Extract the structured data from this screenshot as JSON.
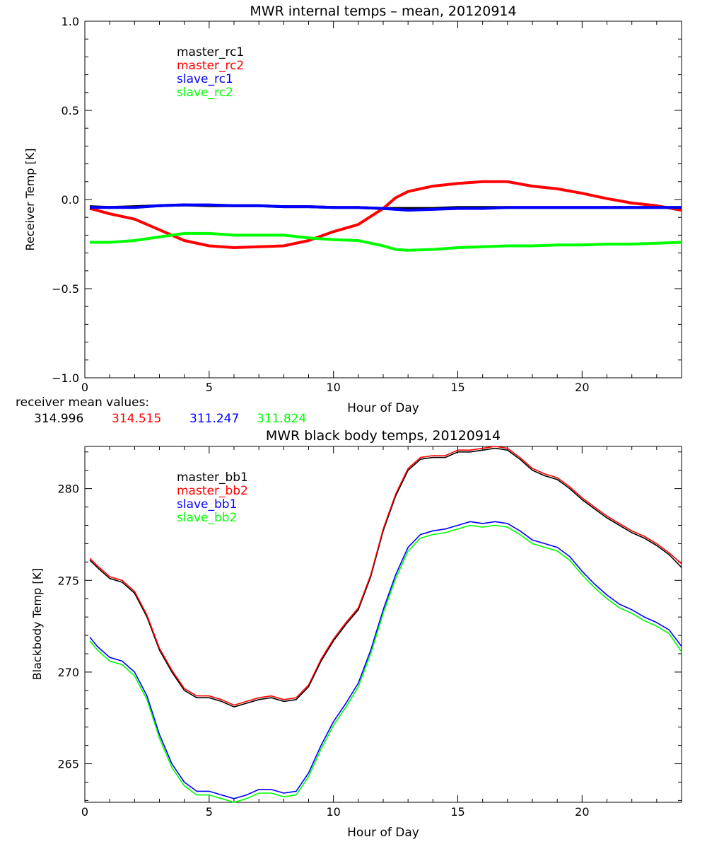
{
  "chart_data": [
    {
      "type": "line",
      "title": "MWR internal temps – mean, 20120914",
      "xlabel": "Hour of Day",
      "ylabel": "Receiver Temp [K]",
      "xlim": [
        0,
        24
      ],
      "ylim": [
        -1.0,
        1.0
      ],
      "xticks": [
        0,
        5,
        10,
        15,
        20
      ],
      "xtick_labels": [
        "0",
        "5",
        "10",
        "15",
        "20"
      ],
      "yticks": [
        -1.0,
        -0.5,
        0.0,
        0.5,
        1.0
      ],
      "ytick_labels": [
        "−1.0",
        "−0.5",
        "0.0",
        "0.5",
        "1.0"
      ],
      "legend_position": "top-left",
      "x": [
        0.2,
        1,
        2,
        3,
        4,
        5,
        6,
        7,
        8,
        9,
        10,
        11,
        12,
        12.5,
        13,
        14,
        15,
        16,
        17,
        18,
        19,
        20,
        21,
        22,
        23,
        24
      ],
      "series": [
        {
          "name": "master_rc1",
          "color": "#000000",
          "values": [
            -0.04,
            -0.045,
            -0.04,
            -0.035,
            -0.03,
            -0.035,
            -0.035,
            -0.035,
            -0.04,
            -0.04,
            -0.045,
            -0.045,
            -0.05,
            -0.05,
            -0.05,
            -0.05,
            -0.045,
            -0.045,
            -0.045,
            -0.045,
            -0.045,
            -0.045,
            -0.045,
            -0.045,
            -0.045,
            -0.045
          ]
        },
        {
          "name": "master_rc2",
          "color": "#ff0000",
          "values": [
            -0.05,
            -0.08,
            -0.11,
            -0.17,
            -0.23,
            -0.26,
            -0.27,
            -0.265,
            -0.26,
            -0.23,
            -0.18,
            -0.14,
            -0.05,
            0.01,
            0.045,
            0.075,
            0.09,
            0.1,
            0.1,
            0.075,
            0.06,
            0.035,
            0.005,
            -0.02,
            -0.035,
            -0.06
          ]
        },
        {
          "name": "slave_rc1",
          "color": "#0000ff",
          "values": [
            -0.045,
            -0.045,
            -0.045,
            -0.035,
            -0.03,
            -0.03,
            -0.035,
            -0.035,
            -0.04,
            -0.04,
            -0.045,
            -0.045,
            -0.05,
            -0.055,
            -0.06,
            -0.055,
            -0.05,
            -0.05,
            -0.045,
            -0.045,
            -0.045,
            -0.045,
            -0.045,
            -0.045,
            -0.045,
            -0.045
          ]
        },
        {
          "name": "slave_rc2",
          "color": "#00ff00",
          "values": [
            -0.24,
            -0.24,
            -0.23,
            -0.21,
            -0.19,
            -0.19,
            -0.2,
            -0.2,
            -0.2,
            -0.215,
            -0.225,
            -0.23,
            -0.26,
            -0.28,
            -0.285,
            -0.28,
            -0.27,
            -0.265,
            -0.26,
            -0.26,
            -0.255,
            -0.255,
            -0.25,
            -0.25,
            -0.245,
            -0.24
          ]
        }
      ],
      "mean_values_label": "receiver mean values:",
      "mean_values": [
        {
          "text": "314.996",
          "color": "#000000"
        },
        {
          "text": "314.515",
          "color": "#ff0000"
        },
        {
          "text": "311.247",
          "color": "#0000ff"
        },
        {
          "text": "311.824",
          "color": "#00ff00"
        }
      ]
    },
    {
      "type": "line",
      "title": "MWR black body temps, 20120914",
      "xlabel": "Hour of Day",
      "ylabel": "Blackbody Temp [K]",
      "xlim": [
        0,
        24
      ],
      "ylim": [
        262.9,
        282.3
      ],
      "xticks": [
        0,
        5,
        10,
        15,
        20
      ],
      "xtick_labels": [
        "0",
        "5",
        "10",
        "15",
        "20"
      ],
      "yticks": [
        265,
        270,
        275,
        280
      ],
      "ytick_labels": [
        "265",
        "270",
        "275",
        "280"
      ],
      "legend_position": "top-left",
      "x": [
        0.2,
        0.5,
        1,
        1.5,
        2,
        2.5,
        3,
        3.5,
        4,
        4.5,
        5,
        5.5,
        6,
        6.5,
        7,
        7.5,
        8,
        8.5,
        9,
        9.5,
        10,
        10.5,
        11,
        11.5,
        12,
        12.5,
        13,
        13.5,
        14,
        14.5,
        15,
        15.5,
        16,
        16.5,
        17,
        17.5,
        18,
        18.5,
        19,
        19.5,
        20,
        20.5,
        21,
        21.5,
        22,
        22.5,
        23,
        23.5,
        24
      ],
      "series": [
        {
          "name": "master_bb1",
          "color": "#000000",
          "values": [
            276.1,
            275.7,
            275.1,
            274.9,
            274.3,
            273.0,
            271.2,
            270.0,
            269.0,
            268.6,
            268.6,
            268.4,
            268.1,
            268.3,
            268.5,
            268.6,
            268.4,
            268.5,
            269.2,
            270.6,
            271.7,
            272.6,
            273.4,
            275.2,
            277.7,
            279.6,
            281.0,
            281.6,
            281.7,
            281.7,
            282.0,
            282.0,
            282.1,
            282.2,
            282.1,
            281.6,
            281.0,
            280.7,
            280.5,
            280.0,
            279.4,
            278.9,
            278.4,
            278.0,
            277.6,
            277.3,
            276.9,
            276.4,
            275.7
          ]
        },
        {
          "name": "master_bb2",
          "color": "#ff0000",
          "values": [
            276.2,
            275.8,
            275.2,
            275.0,
            274.4,
            273.1,
            271.3,
            270.1,
            269.1,
            268.7,
            268.7,
            268.5,
            268.2,
            268.4,
            268.6,
            268.7,
            268.5,
            268.6,
            269.3,
            270.7,
            271.8,
            272.7,
            273.5,
            275.3,
            277.8,
            279.7,
            281.1,
            281.7,
            281.8,
            281.8,
            282.1,
            282.1,
            282.2,
            282.3,
            282.2,
            281.7,
            281.1,
            280.8,
            280.6,
            280.1,
            279.5,
            279.0,
            278.5,
            278.1,
            277.7,
            277.4,
            277.0,
            276.5,
            275.9
          ]
        },
        {
          "name": "slave_bb1",
          "color": "#0000ff",
          "values": [
            271.9,
            271.4,
            270.8,
            270.6,
            270.0,
            268.7,
            266.6,
            265.0,
            264.0,
            263.5,
            263.5,
            263.3,
            263.1,
            263.3,
            263.6,
            263.6,
            263.4,
            263.5,
            264.5,
            266.0,
            267.3,
            268.3,
            269.4,
            271.2,
            273.4,
            275.3,
            276.8,
            277.5,
            277.7,
            277.8,
            278.0,
            278.2,
            278.1,
            278.2,
            278.1,
            277.7,
            277.2,
            277.0,
            276.8,
            276.3,
            275.5,
            274.8,
            274.2,
            273.7,
            273.4,
            273.0,
            272.7,
            272.3,
            271.4
          ]
        },
        {
          "name": "slave_bb2",
          "color": "#00ff00",
          "values": [
            271.7,
            271.2,
            270.6,
            270.4,
            269.8,
            268.5,
            266.4,
            264.8,
            263.8,
            263.3,
            263.3,
            263.1,
            262.9,
            263.1,
            263.4,
            263.4,
            263.2,
            263.3,
            264.3,
            265.8,
            267.1,
            268.1,
            269.2,
            271.0,
            273.2,
            275.1,
            276.6,
            277.3,
            277.5,
            277.6,
            277.8,
            278.0,
            277.9,
            278.0,
            277.9,
            277.5,
            277.0,
            276.8,
            276.6,
            276.1,
            275.3,
            274.6,
            274.0,
            273.5,
            273.2,
            272.8,
            272.5,
            272.1,
            271.1
          ]
        }
      ]
    }
  ]
}
